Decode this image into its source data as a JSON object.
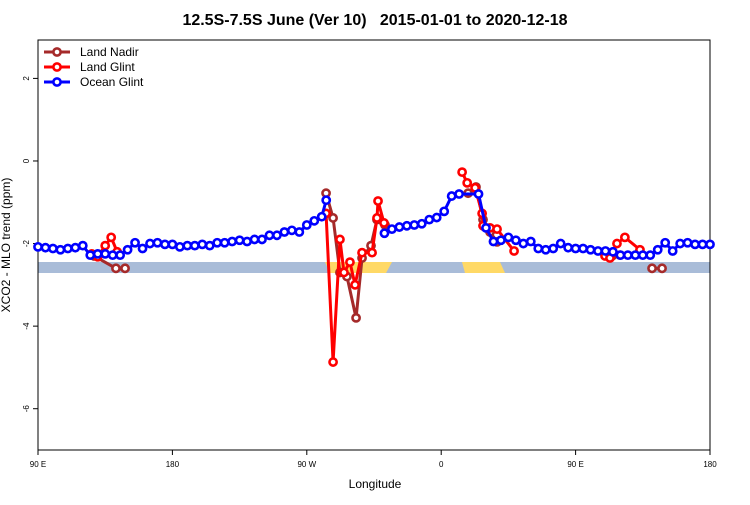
{
  "chart_data": {
    "type": "line",
    "title": "12.5S-7.5S June (Ver 10)   2015-01-01 to 2020-12-18",
    "x_label": "Longitude",
    "y_label": "XCO2 - MLO trend (ppm)",
    "xlim": [
      90,
      540
    ],
    "ylim": [
      -7,
      2.93
    ],
    "xticks": [
      {
        "value": 90,
        "label": "90 E"
      },
      180,
      {
        "value": 270,
        "label": "90 W"
      },
      {
        "value": 360,
        "label": "0"
      },
      {
        "value": 450,
        "label": "90 E"
      },
      {
        "value": 540,
        "label": "180"
      }
    ],
    "yticks": [
      -6,
      -4,
      -2,
      0,
      2
    ],
    "legend": "top-left",
    "series": [
      {
        "name": "Land Nadir",
        "color": "#a52a2a",
        "x": [
          127.5,
          142.2,
          148.3,
          200,
          282.9,
          287.6,
          292.2,
          296.9,
          303,
          307,
          313,
          317,
          322.4,
          350,
          378,
          383.3,
          388,
          392.7,
          397.4,
          440,
          474.4,
          479.8,
          490,
          501.2,
          507.9
        ],
        "values": [
          -2.3,
          -2.6,
          -2.6,
          null,
          -0.78,
          -1.38,
          -2.7,
          -2.8,
          -3.8,
          -2.35,
          -2.05,
          -1.42,
          -1.55,
          null,
          -0.78,
          -0.63,
          -1.42,
          -1.72,
          -1.96,
          null,
          -2.3,
          -2.28,
          null,
          -2.6,
          -2.6
        ]
      },
      {
        "name": "Land Glint",
        "color": "#ff0000",
        "x": [
          126,
          130,
          135,
          139,
          143,
          200,
          282.9,
          287.6,
          292.2,
          294.9,
          298.9,
          302.3,
          307,
          313.7,
          317,
          317.7,
          321.7,
          350,
          374,
          377.4,
          382.7,
          387.4,
          388,
          392.7,
          397.4,
          408.8,
          440,
          469.7,
          473,
          477.7,
          483,
          493.1
        ],
        "values": [
          -2.25,
          -2.32,
          -2.05,
          -1.85,
          -2.2,
          null,
          -1.27,
          -4.87,
          -1.9,
          -2.7,
          -2.45,
          -3.0,
          -2.22,
          -2.22,
          -1.38,
          -0.97,
          -1.5,
          null,
          -0.27,
          -0.53,
          -0.65,
          -1.27,
          -1.57,
          -1.62,
          -1.65,
          -2.18,
          null,
          -2.3,
          -2.35,
          -2.0,
          -1.85,
          -2.15
        ]
      },
      {
        "name": "Ocean Glint",
        "color": "#0000ff",
        "x": [
          90,
          95,
          100,
          105,
          110,
          115,
          120,
          125,
          130,
          135,
          140,
          145,
          150,
          155,
          160,
          165,
          170,
          175,
          180,
          185,
          190,
          195,
          200,
          205,
          210,
          215,
          220,
          225,
          230,
          235,
          240,
          245,
          250,
          255,
          260,
          265,
          270,
          275,
          280,
          283,
          300,
          322,
          327,
          332,
          337,
          342,
          347,
          352,
          357,
          362,
          367,
          372,
          385,
          390,
          395,
          400,
          405,
          410,
          415,
          420,
          425,
          430,
          435,
          440,
          445,
          450,
          455,
          460,
          465,
          470,
          475,
          480,
          485,
          490,
          495,
          500,
          505,
          510,
          515,
          520,
          525,
          530,
          535,
          540
        ],
        "values": [
          -2.08,
          -2.1,
          -2.12,
          -2.15,
          -2.12,
          -2.1,
          -2.05,
          -2.28,
          -2.25,
          -2.25,
          -2.28,
          -2.28,
          -2.15,
          -1.98,
          -2.12,
          -2.0,
          -1.98,
          -2.02,
          -2.02,
          -2.08,
          -2.05,
          -2.05,
          -2.02,
          -2.05,
          -1.98,
          -1.98,
          -1.95,
          -1.92,
          -1.95,
          -1.9,
          -1.9,
          -1.8,
          -1.8,
          -1.72,
          -1.68,
          -1.72,
          -1.55,
          -1.45,
          -1.35,
          -0.95,
          null,
          -1.75,
          -1.65,
          -1.6,
          -1.57,
          -1.55,
          -1.52,
          -1.42,
          -1.37,
          -1.22,
          -0.85,
          -0.8,
          -0.8,
          -1.62,
          -1.95,
          -1.92,
          -1.85,
          -1.92,
          -2.0,
          -1.95,
          -2.12,
          -2.15,
          -2.12,
          -2.0,
          -2.1,
          -2.12,
          -2.12,
          -2.15,
          -2.18,
          -2.18,
          -2.2,
          -2.28,
          -2.28,
          -2.28,
          -2.28,
          -2.28,
          -2.15,
          -1.98,
          -2.18,
          -2.0,
          -1.98,
          -2.02,
          -2.02,
          -2.02
        ]
      }
    ]
  }
}
